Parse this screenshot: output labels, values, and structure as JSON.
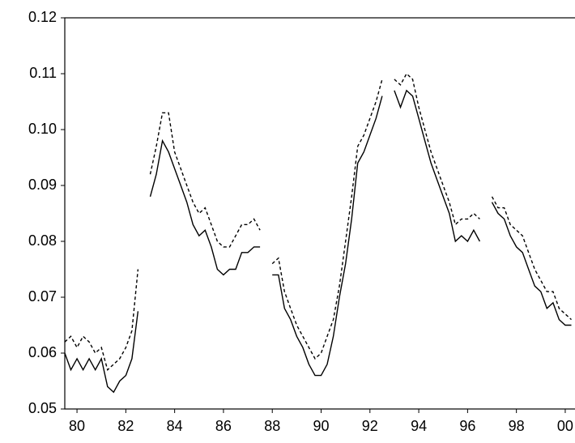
{
  "chart_data": {
    "type": "line",
    "x": [
      79.5,
      79.75,
      80,
      80.25,
      80.5,
      80.75,
      81,
      81.25,
      81.5,
      81.75,
      82,
      82.25,
      82.5,
      82.75,
      83,
      83.25,
      83.5,
      83.75,
      84,
      84.25,
      84.5,
      84.75,
      85,
      85.25,
      85.5,
      85.75,
      86,
      86.25,
      86.5,
      86.75,
      87,
      87.25,
      87.5,
      87.75,
      88,
      88.25,
      88.5,
      88.75,
      89,
      89.25,
      89.5,
      89.75,
      90,
      90.25,
      90.5,
      90.75,
      91,
      91.25,
      91.5,
      91.75,
      92,
      92.25,
      92.5,
      92.75,
      93,
      93.25,
      93.5,
      93.75,
      94,
      94.25,
      94.5,
      94.75,
      95,
      95.25,
      95.5,
      95.75,
      96,
      96.25,
      96.5,
      96.75,
      97,
      97.25,
      97.5,
      97.75,
      98,
      98.25,
      98.5,
      98.75,
      99,
      99.25,
      99.5,
      99.75,
      100,
      100.25
    ],
    "series": [
      {
        "color": "#000000",
        "dashed": false,
        "values": [
          0.06,
          0.057,
          0.059,
          0.057,
          0.059,
          0.057,
          0.059,
          0.054,
          0.053,
          0.055,
          0.056,
          0.059,
          0.0675,
          null,
          0.088,
          0.092,
          0.098,
          0.096,
          0.093,
          0.09,
          0.087,
          0.083,
          0.081,
          0.082,
          0.079,
          0.075,
          0.074,
          0.075,
          0.075,
          0.078,
          0.078,
          0.079,
          0.079,
          null,
          0.074,
          0.074,
          0.068,
          0.066,
          0.063,
          0.061,
          0.058,
          0.056,
          0.056,
          0.058,
          0.063,
          0.07,
          0.076,
          0.084,
          0.094,
          0.096,
          0.099,
          0.102,
          0.106,
          null,
          0.107,
          0.104,
          0.107,
          0.106,
          0.102,
          0.098,
          0.094,
          0.091,
          0.088,
          0.085,
          0.08,
          0.081,
          0.08,
          0.082,
          0.08,
          null,
          0.087,
          0.085,
          0.084,
          0.081,
          0.079,
          0.078,
          0.075,
          0.072,
          0.071,
          0.068,
          0.069,
          0.066,
          0.065,
          0.065
        ]
      },
      {
        "color": "#000000",
        "dashed": true,
        "values": [
          0.062,
          0.063,
          0.061,
          0.063,
          0.062,
          0.06,
          0.061,
          0.057,
          0.058,
          0.059,
          0.061,
          0.064,
          0.075,
          null,
          0.092,
          0.097,
          0.103,
          0.103,
          0.096,
          0.093,
          0.09,
          0.087,
          0.085,
          0.086,
          0.083,
          0.08,
          0.079,
          0.079,
          0.081,
          0.083,
          0.083,
          0.084,
          0.082,
          null,
          0.076,
          0.077,
          0.071,
          0.068,
          0.065,
          0.063,
          0.061,
          0.059,
          0.06,
          0.063,
          0.066,
          0.072,
          0.08,
          0.088,
          0.097,
          0.099,
          0.102,
          0.105,
          0.109,
          null,
          0.109,
          0.108,
          0.11,
          0.109,
          0.104,
          0.1,
          0.096,
          0.093,
          0.09,
          0.087,
          0.083,
          0.084,
          0.084,
          0.085,
          0.084,
          null,
          0.088,
          0.086,
          0.086,
          0.083,
          0.082,
          0.081,
          0.078,
          0.075,
          0.073,
          0.071,
          0.071,
          0.068,
          0.067,
          0.066
        ]
      }
    ],
    "xlim": [
      79.5,
      100.4
    ],
    "xticks": [
      80,
      82,
      84,
      86,
      88,
      90,
      92,
      94,
      96,
      98,
      {
        "value": 100,
        "label": "00"
      }
    ],
    "ylim": [
      0.05,
      0.12
    ],
    "yticks": [
      0.05,
      0.06,
      0.07,
      0.08,
      0.09,
      {
        "value": 0.1,
        "label": "0.10"
      },
      0.11,
      0.12
    ],
    "grid": false
  }
}
